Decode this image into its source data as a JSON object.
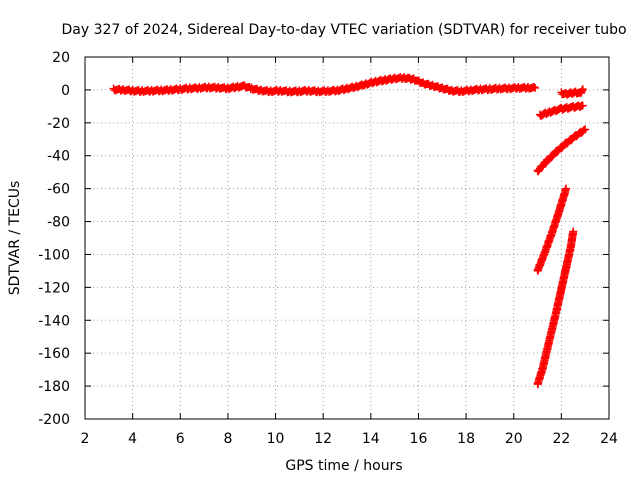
{
  "chart_data": {
    "type": "scatter",
    "title": "Day 327 of 2024, Sidereal Day-to-day VTEC variation (SDTVAR) for receiver tubo",
    "xlabel": "GPS time / hours",
    "ylabel": "SDTVAR / TECUs",
    "xlim": [
      2,
      24
    ],
    "ylim": [
      -200,
      20
    ],
    "xticks": [
      "2",
      "4",
      "6",
      "8",
      "10",
      "12",
      "14",
      "16",
      "18",
      "20",
      "22",
      "24"
    ],
    "yticks": [
      "20",
      "0",
      "-20",
      "-40",
      "-60",
      "-80",
      "-100",
      "-120",
      "-140",
      "-160",
      "-180",
      "-200"
    ],
    "grid": true,
    "marker": "plus",
    "color": "#ff0000",
    "series": [
      {
        "x": [
          3.2,
          3.6,
          4.0,
          4.4,
          4.8,
          5.2,
          5.6,
          6.0,
          6.4,
          6.8,
          7.2,
          7.6,
          8.0,
          8.4,
          8.7,
          9.0,
          9.4,
          9.8,
          10.2,
          10.6,
          11.0,
          11.4,
          11.8,
          12.2,
          12.6,
          13.0,
          13.4,
          13.8,
          14.2,
          14.6,
          15.0,
          15.4,
          15.8,
          16.2,
          16.6,
          17.0,
          17.4,
          17.8,
          18.2,
          18.6,
          19.0,
          19.4,
          19.8,
          20.2,
          20.6,
          20.9
        ],
        "y": [
          0.3,
          0.0,
          -0.5,
          -0.7,
          -0.5,
          -0.3,
          0.0,
          0.5,
          0.9,
          1.2,
          1.5,
          1.3,
          0.9,
          1.9,
          2.2,
          0.8,
          -0.4,
          -0.8,
          -0.5,
          -1.0,
          -0.8,
          -0.5,
          -0.9,
          -0.7,
          -0.3,
          0.8,
          2.0,
          3.5,
          5.0,
          6.0,
          7.0,
          7.3,
          6.5,
          4.0,
          2.5,
          1.0,
          -0.5,
          -0.8,
          -0.2,
          0.3,
          0.5,
          0.8,
          1.0,
          1.2,
          1.3,
          1.2
        ]
      },
      {
        "x": [
          22.0,
          22.2,
          22.4,
          22.6,
          22.8,
          22.9
        ],
        "y": [
          -2.0,
          -2.5,
          -2.0,
          -1.5,
          -2.0,
          0.5
        ]
      },
      {
        "x": [
          21.1,
          21.5,
          22.0,
          22.5,
          22.9
        ],
        "y": [
          -15.5,
          -13.5,
          -11.5,
          -10.5,
          -9.5
        ]
      },
      {
        "x": [
          21.0,
          21.4,
          21.8,
          22.2,
          22.6,
          23.0
        ],
        "y": [
          -49.5,
          -43.0,
          -37.5,
          -32.5,
          -28.0,
          -24.0
        ]
      },
      {
        "x": [
          21.0,
          21.3,
          21.6,
          21.9,
          22.2
        ],
        "y": [
          -110.0,
          -99.0,
          -87.0,
          -74.0,
          -60.0
        ]
      },
      {
        "x": [
          21.0,
          21.2,
          21.4,
          21.6,
          21.8,
          22.0,
          22.2,
          22.4,
          22.5
        ],
        "y": [
          -179.0,
          -170.0,
          -158.0,
          -146.0,
          -134.0,
          -121.0,
          -108.0,
          -95.0,
          -86.0
        ]
      }
    ]
  }
}
